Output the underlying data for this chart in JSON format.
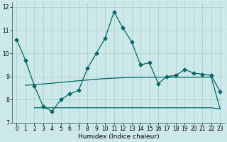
{
  "xlabel": "Humidex (Indice chaleur)",
  "bg_color": "#cde8e8",
  "grid_color": "#aacccc",
  "line_color": "#006666",
  "xlim": [
    -0.5,
    23.5
  ],
  "ylim": [
    7,
    12.2
  ],
  "yticks": [
    7,
    8,
    9,
    10,
    11,
    12
  ],
  "xticks": [
    0,
    1,
    2,
    3,
    4,
    5,
    6,
    7,
    8,
    9,
    10,
    11,
    12,
    13,
    14,
    15,
    16,
    17,
    18,
    19,
    20,
    21,
    22,
    23
  ],
  "series_main_x": [
    0,
    1,
    2,
    3,
    4,
    5,
    6,
    7,
    8,
    9,
    10,
    11,
    12,
    13,
    14,
    15,
    16,
    17,
    18,
    19,
    20,
    21,
    22,
    23
  ],
  "series_main_y": [
    10.6,
    9.7,
    8.6,
    7.7,
    7.5,
    8.0,
    8.25,
    8.4,
    9.35,
    10.0,
    10.65,
    11.8,
    11.1,
    10.5,
    9.5,
    9.6,
    8.7,
    9.0,
    9.05,
    9.3,
    9.15,
    9.1,
    9.05,
    8.35
  ],
  "series_mid_x": [
    1,
    2,
    3,
    4,
    5,
    6,
    7,
    8,
    9,
    10,
    11,
    12,
    13,
    14,
    15,
    16,
    17,
    18,
    19,
    20,
    21,
    22,
    23
  ],
  "series_mid_y": [
    8.62,
    8.65,
    8.68,
    8.71,
    8.75,
    8.78,
    8.82,
    8.85,
    8.88,
    8.91,
    8.93,
    8.95,
    8.96,
    8.97,
    8.97,
    8.97,
    8.97,
    8.97,
    8.97,
    8.97,
    8.97,
    8.97,
    7.6
  ],
  "series_low_x": [
    2,
    3,
    4,
    5,
    6,
    7,
    8,
    9,
    10,
    11,
    12,
    13,
    14,
    15,
    16,
    17,
    18,
    19,
    20,
    21,
    22,
    23
  ],
  "series_low_y": [
    7.65,
    7.65,
    7.65,
    7.65,
    7.65,
    7.65,
    7.65,
    7.65,
    7.65,
    7.65,
    7.65,
    7.65,
    7.65,
    7.65,
    7.65,
    7.65,
    7.65,
    7.65,
    7.65,
    7.65,
    7.65,
    7.6
  ]
}
